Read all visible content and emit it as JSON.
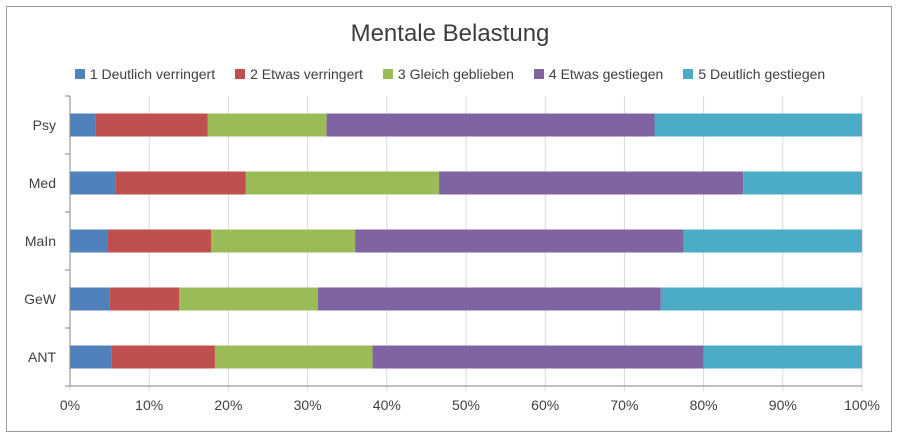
{
  "chart_data": {
    "type": "bar",
    "orientation": "horizontal",
    "stacked": true,
    "percent": true,
    "title": "Mentale Belastung",
    "xlabel": "",
    "ylabel": "",
    "xlim": [
      0,
      100
    ],
    "grid": true,
    "legend_position": "top",
    "x_tick_labels": [
      "0%",
      "10%",
      "20%",
      "30%",
      "40%",
      "50%",
      "60%",
      "70%",
      "80%",
      "90%",
      "100%"
    ],
    "categories": [
      "Psy",
      "Med",
      "MaIn",
      "GeW",
      "ANT"
    ],
    "series": [
      {
        "name": "1 Deutlich verringert",
        "color": "#4f81bd",
        "values": [
          3.2,
          5.8,
          4.8,
          5.0,
          5.2
        ]
      },
      {
        "name": "2 Etwas verringert",
        "color": "#c0504d",
        "values": [
          14.2,
          16.4,
          13.0,
          8.8,
          13.1
        ]
      },
      {
        "name": "3 Gleich geblieben",
        "color": "#9bbb59",
        "values": [
          15.0,
          24.4,
          18.2,
          17.5,
          19.9
        ]
      },
      {
        "name": "4 Etwas gestiegen",
        "color": "#8064a2",
        "values": [
          41.4,
          38.4,
          41.5,
          43.3,
          41.8
        ]
      },
      {
        "name": "5 Deutlich gestiegen",
        "color": "#4bacc6",
        "values": [
          26.2,
          15.0,
          22.5,
          25.4,
          20.0
        ]
      }
    ]
  }
}
